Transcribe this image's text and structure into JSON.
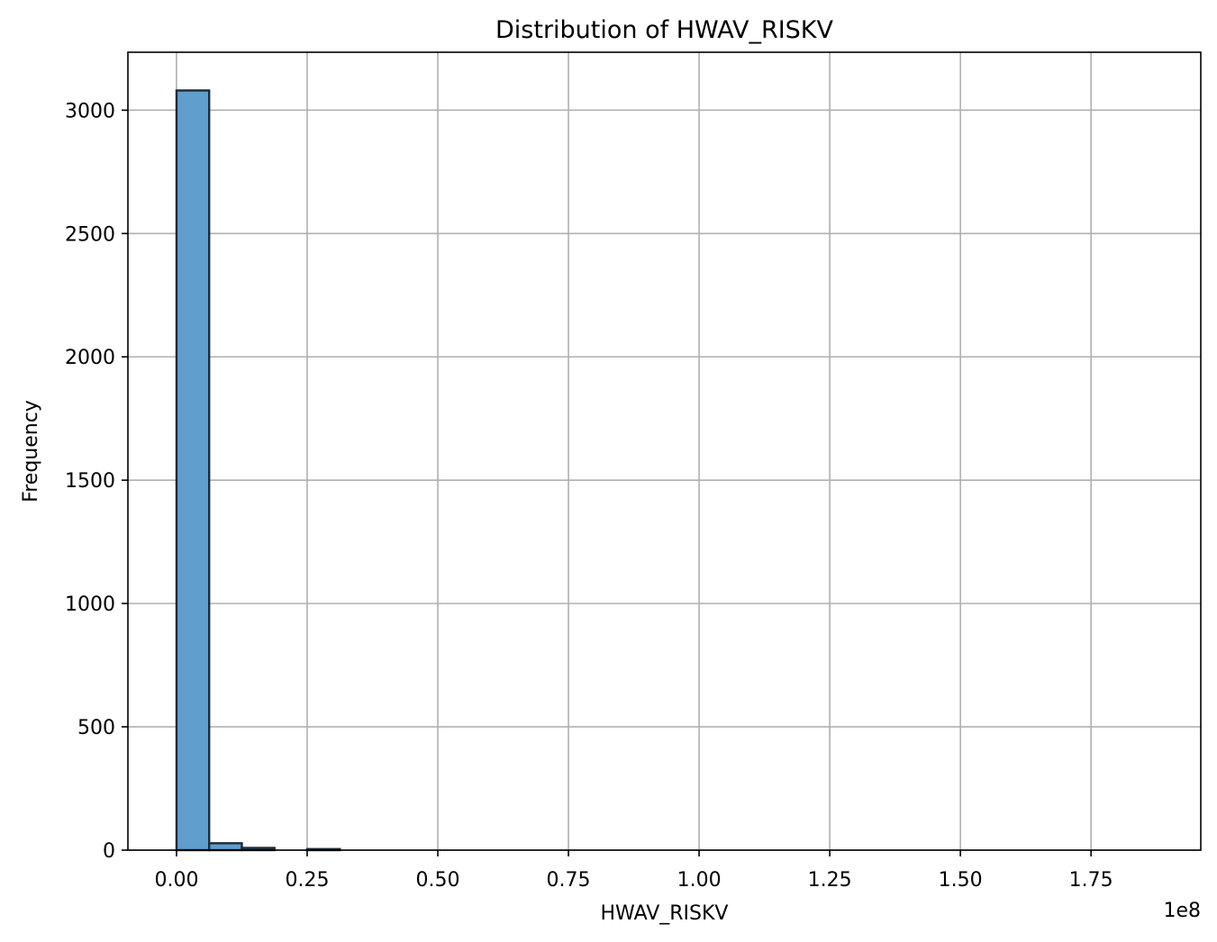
{
  "chart_data": {
    "type": "bar",
    "title": "Distribution of HWAV_RISKV",
    "xlabel": "HWAV_RISKV",
    "ylabel": "Frequency",
    "x_offset_text": "1e8",
    "xlim": [
      -0.093,
      1.96
    ],
    "ylim": [
      0,
      3235
    ],
    "x_ticks": [
      0.0,
      0.25,
      0.5,
      0.75,
      1.0,
      1.25,
      1.5,
      1.75
    ],
    "x_tick_labels": [
      "0.00",
      "0.25",
      "0.50",
      "0.75",
      "1.00",
      "1.25",
      "1.50",
      "1.75"
    ],
    "y_ticks": [
      0,
      500,
      1000,
      1500,
      2000,
      2500,
      3000
    ],
    "y_tick_labels": [
      "0",
      "500",
      "1000",
      "1500",
      "2000",
      "2500",
      "3000"
    ],
    "grid": true,
    "legend": "none",
    "bar_color": "#5f9ecd",
    "bar_edge_color": "#1e2a36",
    "grid_color": "#b0b0b0",
    "bins": [
      {
        "start": 0.0,
        "end": 0.0625,
        "count": 3080
      },
      {
        "start": 0.0625,
        "end": 0.125,
        "count": 28
      },
      {
        "start": 0.125,
        "end": 0.1875,
        "count": 9
      },
      {
        "start": 0.1875,
        "end": 0.25,
        "count": 0
      },
      {
        "start": 0.25,
        "end": 0.3125,
        "count": 2
      },
      {
        "start": 0.3125,
        "end": 0.375,
        "count": 0
      },
      {
        "start": 0.375,
        "end": 0.4375,
        "count": 0
      },
      {
        "start": 0.4375,
        "end": 0.5,
        "count": 0
      },
      {
        "start": 0.5,
        "end": 0.5625,
        "count": 0
      },
      {
        "start": 0.5625,
        "end": 0.625,
        "count": 0
      },
      {
        "start": 0.625,
        "end": 0.6875,
        "count": 0
      },
      {
        "start": 0.6875,
        "end": 0.75,
        "count": 0
      },
      {
        "start": 0.75,
        "end": 0.8125,
        "count": 0
      },
      {
        "start": 0.8125,
        "end": 0.875,
        "count": 0
      },
      {
        "start": 0.875,
        "end": 0.9375,
        "count": 0
      },
      {
        "start": 0.9375,
        "end": 1.0,
        "count": 0
      },
      {
        "start": 1.0,
        "end": 1.0625,
        "count": 0
      },
      {
        "start": 1.0625,
        "end": 1.125,
        "count": 0
      },
      {
        "start": 1.125,
        "end": 1.1875,
        "count": 0
      },
      {
        "start": 1.1875,
        "end": 1.25,
        "count": 0
      },
      {
        "start": 1.25,
        "end": 1.3125,
        "count": 0
      },
      {
        "start": 1.3125,
        "end": 1.375,
        "count": 0
      },
      {
        "start": 1.375,
        "end": 1.4375,
        "count": 0
      },
      {
        "start": 1.4375,
        "end": 1.5,
        "count": 0
      },
      {
        "start": 1.5,
        "end": 1.5625,
        "count": 0
      },
      {
        "start": 1.5625,
        "end": 1.625,
        "count": 0
      },
      {
        "start": 1.625,
        "end": 1.6875,
        "count": 0
      },
      {
        "start": 1.6875,
        "end": 1.75,
        "count": 0
      },
      {
        "start": 1.75,
        "end": 1.8125,
        "count": 0
      },
      {
        "start": 1.8125,
        "end": 1.875,
        "count": 0
      }
    ]
  }
}
